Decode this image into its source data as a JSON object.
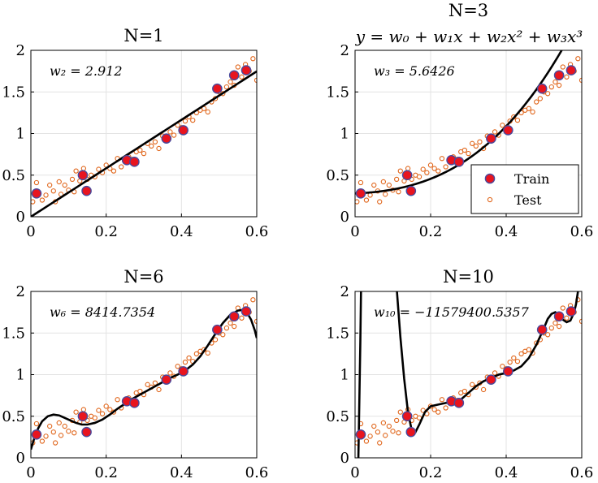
{
  "chart_data": [
    {
      "type": "scatter",
      "title": "N=1",
      "subtitle": "",
      "annotation": "w₂ = 2.912",
      "xlim": [
        0,
        0.6
      ],
      "ylim": [
        0,
        2
      ],
      "xticks": [
        0,
        0.2,
        0.4,
        0.6
      ],
      "yticks": [
        0,
        0.5,
        1,
        1.5,
        2
      ],
      "xticklabels": [
        "0",
        "0.2",
        "0.4",
        "0.6"
      ],
      "yticklabels": [
        "0",
        "0.5",
        "1",
        "1.5",
        "2"
      ],
      "grid": true,
      "fit_coefficients": [
        0.0,
        2.912
      ],
      "series": [
        {
          "name": "Train",
          "x": [
            0.015,
            0.138,
            0.148,
            0.255,
            0.275,
            0.36,
            0.405,
            0.495,
            0.54,
            0.572
          ],
          "y": [
            0.28,
            0.5,
            0.31,
            0.68,
            0.66,
            0.94,
            1.04,
            1.54,
            1.7,
            1.76
          ]
        },
        {
          "name": "Test",
          "x": [
            0.005,
            0.015,
            0.02,
            0.03,
            0.04,
            0.05,
            0.06,
            0.065,
            0.075,
            0.08,
            0.09,
            0.1,
            0.11,
            0.115,
            0.12,
            0.13,
            0.14,
            0.15,
            0.16,
            0.17,
            0.18,
            0.19,
            0.2,
            0.21,
            0.22,
            0.23,
            0.24,
            0.25,
            0.26,
            0.27,
            0.28,
            0.29,
            0.3,
            0.31,
            0.32,
            0.33,
            0.34,
            0.35,
            0.36,
            0.37,
            0.38,
            0.39,
            0.4,
            0.41,
            0.42,
            0.43,
            0.44,
            0.45,
            0.46,
            0.47,
            0.48,
            0.49,
            0.5,
            0.51,
            0.52,
            0.53,
            0.54,
            0.55,
            0.56,
            0.57,
            0.58,
            0.59,
            0.6
          ],
          "y": [
            0.18,
            0.41,
            0.3,
            0.2,
            0.26,
            0.38,
            0.31,
            0.18,
            0.42,
            0.27,
            0.38,
            0.32,
            0.45,
            0.3,
            0.55,
            0.43,
            0.58,
            0.45,
            0.5,
            0.48,
            0.57,
            0.53,
            0.62,
            0.58,
            0.55,
            0.7,
            0.6,
            0.66,
            0.72,
            0.69,
            0.78,
            0.8,
            0.76,
            0.88,
            0.85,
            0.9,
            0.82,
            0.97,
            0.93,
            1.02,
            0.98,
            1.1,
            1.07,
            1.15,
            1.2,
            1.16,
            1.25,
            1.28,
            1.3,
            1.26,
            1.38,
            1.42,
            1.5,
            1.48,
            1.56,
            1.62,
            1.58,
            1.8,
            1.68,
            1.83,
            1.75,
            1.9,
            1.64
          ]
        }
      ]
    },
    {
      "type": "scatter",
      "title": "N=3",
      "subtitle": "y = w₀ + w₁x + w₂x² + w₃x³",
      "annotation": "w₃ = 5.6426",
      "xlim": [
        0,
        0.6
      ],
      "ylim": [
        0,
        2
      ],
      "xticks": [
        0,
        0.2,
        0.4,
        0.6
      ],
      "yticks": [
        0,
        0.5,
        1,
        1.5,
        2
      ],
      "xticklabels": [
        "0",
        "0.2",
        "0.4",
        "0.6"
      ],
      "yticklabels": [
        "0",
        "0.5",
        "1",
        "1.5",
        "2"
      ],
      "grid": true,
      "legend": {
        "position": "bottom-right",
        "entries": [
          "Train",
          "Test"
        ]
      },
      "fit_coefficients": [
        0.28,
        0.19,
        2.32,
        5.6426
      ],
      "series": [
        {
          "name": "Train",
          "x": [
            0.015,
            0.138,
            0.148,
            0.255,
            0.275,
            0.36,
            0.405,
            0.495,
            0.54,
            0.572
          ],
          "y": [
            0.28,
            0.5,
            0.31,
            0.68,
            0.66,
            0.94,
            1.04,
            1.54,
            1.7,
            1.76
          ]
        },
        {
          "name": "Test",
          "x": [
            0.005,
            0.015,
            0.02,
            0.03,
            0.04,
            0.05,
            0.06,
            0.065,
            0.075,
            0.08,
            0.09,
            0.1,
            0.11,
            0.115,
            0.12,
            0.13,
            0.14,
            0.15,
            0.16,
            0.17,
            0.18,
            0.19,
            0.2,
            0.21,
            0.22,
            0.23,
            0.24,
            0.25,
            0.26,
            0.27,
            0.28,
            0.29,
            0.3,
            0.31,
            0.32,
            0.33,
            0.34,
            0.35,
            0.36,
            0.37,
            0.38,
            0.39,
            0.4,
            0.41,
            0.42,
            0.43,
            0.44,
            0.45,
            0.46,
            0.47,
            0.48,
            0.49,
            0.5,
            0.51,
            0.52,
            0.53,
            0.54,
            0.55,
            0.56,
            0.57,
            0.58,
            0.59,
            0.6
          ],
          "y": [
            0.18,
            0.41,
            0.3,
            0.2,
            0.26,
            0.38,
            0.31,
            0.18,
            0.42,
            0.27,
            0.38,
            0.32,
            0.45,
            0.3,
            0.55,
            0.43,
            0.58,
            0.45,
            0.5,
            0.48,
            0.57,
            0.53,
            0.62,
            0.58,
            0.55,
            0.7,
            0.6,
            0.66,
            0.72,
            0.69,
            0.78,
            0.8,
            0.76,
            0.88,
            0.85,
            0.9,
            0.82,
            0.97,
            0.93,
            1.02,
            0.98,
            1.1,
            1.07,
            1.15,
            1.2,
            1.16,
            1.25,
            1.28,
            1.3,
            1.26,
            1.38,
            1.42,
            1.5,
            1.48,
            1.56,
            1.62,
            1.58,
            1.8,
            1.68,
            1.83,
            1.75,
            1.9,
            1.64
          ]
        }
      ]
    },
    {
      "type": "scatter",
      "title": "N=6",
      "subtitle": "",
      "annotation": "w₆ = 8414.7354",
      "xlim": [
        0,
        0.6
      ],
      "ylim": [
        0,
        2
      ],
      "xticks": [
        0,
        0.2,
        0.4,
        0.6
      ],
      "yticks": [
        0,
        0.5,
        1,
        1.5,
        2
      ],
      "xticklabels": [
        "0",
        "0.2",
        "0.4",
        "0.6"
      ],
      "yticklabels": [
        "0",
        "0.5",
        "1",
        "1.5",
        "2"
      ],
      "grid": true,
      "fit_points": {
        "x": [
          0,
          0.01,
          0.02,
          0.03,
          0.045,
          0.06,
          0.075,
          0.09,
          0.105,
          0.12,
          0.135,
          0.15,
          0.17,
          0.19,
          0.21,
          0.23,
          0.25,
          0.27,
          0.29,
          0.31,
          0.33,
          0.35,
          0.37,
          0.39,
          0.41,
          0.43,
          0.45,
          0.47,
          0.49,
          0.51,
          0.53,
          0.55,
          0.565,
          0.575,
          0.585,
          0.595,
          0.6
        ],
        "y": [
          0.1,
          0.25,
          0.36,
          0.44,
          0.5,
          0.52,
          0.51,
          0.48,
          0.45,
          0.42,
          0.4,
          0.4,
          0.42,
          0.46,
          0.52,
          0.59,
          0.65,
          0.71,
          0.76,
          0.81,
          0.86,
          0.91,
          0.96,
          1.0,
          1.05,
          1.12,
          1.22,
          1.35,
          1.49,
          1.62,
          1.72,
          1.77,
          1.78,
          1.74,
          1.66,
          1.53,
          1.44
        ]
      },
      "series": [
        {
          "name": "Train",
          "x": [
            0.015,
            0.138,
            0.148,
            0.255,
            0.275,
            0.36,
            0.405,
            0.495,
            0.54,
            0.572
          ],
          "y": [
            0.28,
            0.5,
            0.31,
            0.68,
            0.66,
            0.94,
            1.04,
            1.54,
            1.7,
            1.76
          ]
        },
        {
          "name": "Test",
          "x": [
            0.005,
            0.015,
            0.02,
            0.03,
            0.04,
            0.05,
            0.06,
            0.065,
            0.075,
            0.08,
            0.09,
            0.1,
            0.11,
            0.115,
            0.12,
            0.13,
            0.14,
            0.15,
            0.16,
            0.17,
            0.18,
            0.19,
            0.2,
            0.21,
            0.22,
            0.23,
            0.24,
            0.25,
            0.26,
            0.27,
            0.28,
            0.29,
            0.3,
            0.31,
            0.32,
            0.33,
            0.34,
            0.35,
            0.36,
            0.37,
            0.38,
            0.39,
            0.4,
            0.41,
            0.42,
            0.43,
            0.44,
            0.45,
            0.46,
            0.47,
            0.48,
            0.49,
            0.5,
            0.51,
            0.52,
            0.53,
            0.54,
            0.55,
            0.56,
            0.57,
            0.58,
            0.59,
            0.6
          ],
          "y": [
            0.18,
            0.41,
            0.3,
            0.2,
            0.26,
            0.38,
            0.31,
            0.18,
            0.42,
            0.27,
            0.38,
            0.32,
            0.45,
            0.3,
            0.55,
            0.43,
            0.58,
            0.45,
            0.5,
            0.48,
            0.57,
            0.53,
            0.62,
            0.58,
            0.55,
            0.7,
            0.6,
            0.66,
            0.72,
            0.69,
            0.78,
            0.8,
            0.76,
            0.88,
            0.85,
            0.9,
            0.82,
            0.97,
            0.93,
            1.02,
            0.98,
            1.1,
            1.07,
            1.15,
            1.2,
            1.16,
            1.25,
            1.28,
            1.3,
            1.26,
            1.38,
            1.42,
            1.5,
            1.48,
            1.56,
            1.62,
            1.58,
            1.8,
            1.68,
            1.83,
            1.75,
            1.9,
            1.64
          ]
        }
      ]
    },
    {
      "type": "scatter",
      "title": "N=10",
      "subtitle": "",
      "annotation": "w₁₀ = −11579400.5357",
      "xlim": [
        0,
        0.6
      ],
      "ylim": [
        0,
        2
      ],
      "xticks": [
        0,
        0.2,
        0.4,
        0.6
      ],
      "yticks": [
        0,
        0.5,
        1,
        1.5,
        2
      ],
      "xticklabels": [
        "0",
        "0.2",
        "0.4",
        "0.6"
      ],
      "yticklabels": [
        "0",
        "0.5",
        "1",
        "1.5",
        "2"
      ],
      "grid": true,
      "fit_segments": [
        {
          "x": [
            0.008,
            0.011,
            0.014,
            0.016,
            0.018
          ],
          "y": [
            -0.2,
            0.6,
            1.4,
            2.1,
            2.6
          ]
        },
        {
          "x": [
            0.1,
            0.11,
            0.12,
            0.13,
            0.14,
            0.15,
            0.16,
            0.17,
            0.185,
            0.2,
            0.22,
            0.24,
            0.26,
            0.28,
            0.3,
            0.32,
            0.34,
            0.36,
            0.38,
            0.4,
            0.42,
            0.44,
            0.46,
            0.48,
            0.5,
            0.51,
            0.52,
            0.53,
            0.54,
            0.55,
            0.56,
            0.57,
            0.58,
            0.585,
            0.59,
            0.595
          ],
          "y": [
            2.6,
            2.05,
            1.45,
            0.95,
            0.55,
            0.33,
            0.31,
            0.4,
            0.55,
            0.62,
            0.64,
            0.66,
            0.67,
            0.7,
            0.78,
            0.86,
            0.92,
            0.96,
            1.0,
            1.02,
            1.05,
            1.1,
            1.2,
            1.36,
            1.56,
            1.67,
            1.73,
            1.75,
            1.72,
            1.66,
            1.63,
            1.65,
            1.75,
            1.85,
            2.0,
            2.3
          ]
        }
      ],
      "series": [
        {
          "name": "Train",
          "x": [
            0.015,
            0.138,
            0.148,
            0.255,
            0.275,
            0.36,
            0.405,
            0.495,
            0.54,
            0.572
          ],
          "y": [
            0.28,
            0.5,
            0.31,
            0.68,
            0.66,
            0.94,
            1.04,
            1.54,
            1.7,
            1.76
          ]
        },
        {
          "name": "Test",
          "x": [
            0.005,
            0.015,
            0.02,
            0.03,
            0.04,
            0.05,
            0.06,
            0.065,
            0.075,
            0.08,
            0.09,
            0.1,
            0.11,
            0.115,
            0.12,
            0.13,
            0.14,
            0.15,
            0.16,
            0.17,
            0.18,
            0.19,
            0.2,
            0.21,
            0.22,
            0.23,
            0.24,
            0.25,
            0.26,
            0.27,
            0.28,
            0.29,
            0.3,
            0.31,
            0.32,
            0.33,
            0.34,
            0.35,
            0.36,
            0.37,
            0.38,
            0.39,
            0.4,
            0.41,
            0.42,
            0.43,
            0.44,
            0.45,
            0.46,
            0.47,
            0.48,
            0.49,
            0.5,
            0.51,
            0.52,
            0.53,
            0.54,
            0.55,
            0.56,
            0.57,
            0.58,
            0.59,
            0.6
          ],
          "y": [
            0.18,
            0.41,
            0.3,
            0.2,
            0.26,
            0.38,
            0.31,
            0.18,
            0.42,
            0.27,
            0.38,
            0.32,
            0.45,
            0.3,
            0.55,
            0.43,
            0.58,
            0.45,
            0.5,
            0.48,
            0.57,
            0.53,
            0.62,
            0.58,
            0.55,
            0.7,
            0.6,
            0.66,
            0.72,
            0.69,
            0.78,
            0.8,
            0.76,
            0.88,
            0.85,
            0.9,
            0.82,
            0.97,
            0.93,
            1.02,
            0.98,
            1.1,
            1.07,
            1.15,
            1.2,
            1.16,
            1.25,
            1.28,
            1.3,
            1.26,
            1.38,
            1.42,
            1.5,
            1.48,
            1.56,
            1.62,
            1.58,
            1.8,
            1.68,
            1.83,
            1.75,
            1.9,
            1.64
          ]
        }
      ]
    }
  ],
  "colors": {
    "train_fill": "#e8141e",
    "train_edge": "#4a4a9c",
    "test_edge": "#e0651a",
    "fit_line": "#000000",
    "grid": "#e3e3e3"
  }
}
